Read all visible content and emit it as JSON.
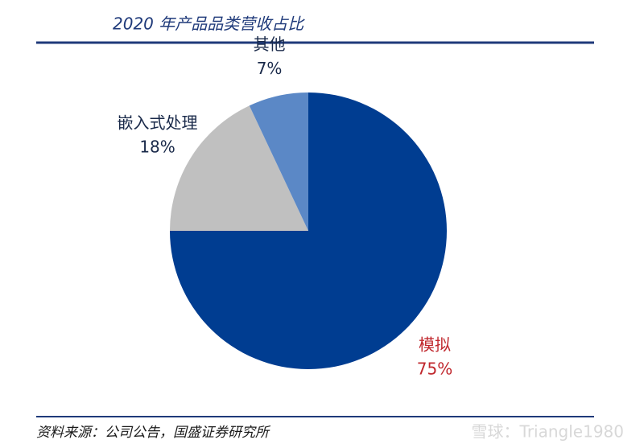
{
  "chart_data": {
    "type": "pie",
    "title": "2020 年产品品类营收占比",
    "categories": [
      "模拟",
      "嵌入式处理",
      "其他"
    ],
    "values": [
      75,
      18,
      7
    ],
    "value_labels": [
      "75%",
      "18%",
      "7%"
    ],
    "colors": [
      "#003d91",
      "#c0c0c0",
      "#5b88c6"
    ],
    "label_colors": [
      "#c0272d",
      "#1a2a4a",
      "#1a2a4a"
    ],
    "source": "资料来源：公司公告，国盛证券研究所",
    "watermark": "雪球：Triangle1980"
  }
}
